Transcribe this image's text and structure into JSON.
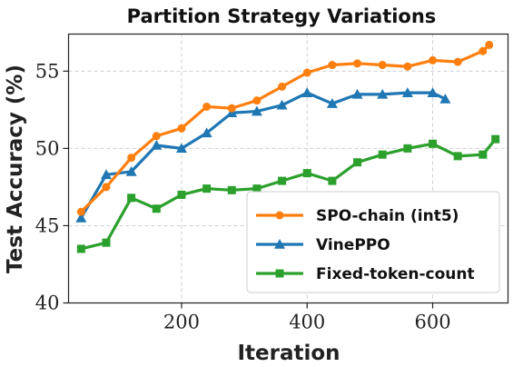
{
  "chart_data": {
    "type": "line",
    "title": "Partition Strategy Variations",
    "xlabel": "Iteration",
    "ylabel": "Test Accuracy (%)",
    "xlim": [
      20,
      720
    ],
    "ylim": [
      40,
      57.4
    ],
    "xticks": [
      200,
      400,
      600
    ],
    "yticks": [
      40,
      45,
      50,
      55
    ],
    "grid": true,
    "legend_position": "lower-right",
    "series": [
      {
        "name": "SPO-chain (int5)",
        "color": "#ff7f0e",
        "marker": "circle",
        "x": [
          40,
          80,
          120,
          160,
          200,
          240,
          280,
          320,
          360,
          400,
          440,
          480,
          520,
          560,
          600,
          640,
          680,
          690
        ],
        "y": [
          45.9,
          47.5,
          49.4,
          50.8,
          51.3,
          52.7,
          52.6,
          53.1,
          54.0,
          54.9,
          55.4,
          55.5,
          55.4,
          55.3,
          55.7,
          55.6,
          56.3,
          56.7
        ]
      },
      {
        "name": "VinePPO",
        "color": "#1f77b4",
        "marker": "triangle",
        "x": [
          40,
          80,
          120,
          160,
          200,
          240,
          280,
          320,
          360,
          400,
          440,
          480,
          520,
          560,
          600,
          620
        ],
        "y": [
          45.5,
          48.3,
          48.5,
          50.2,
          50.0,
          51.0,
          52.3,
          52.4,
          52.8,
          53.6,
          52.9,
          53.5,
          53.5,
          53.6,
          53.6,
          53.2
        ]
      },
      {
        "name": "Fixed-token-count",
        "color": "#2ca02c",
        "marker": "square",
        "x": [
          40,
          80,
          120,
          160,
          200,
          240,
          280,
          320,
          360,
          400,
          440,
          480,
          520,
          560,
          600,
          640,
          680,
          700
        ],
        "y": [
          43.5,
          43.9,
          46.8,
          46.1,
          47.0,
          47.4,
          47.3,
          47.4,
          47.9,
          48.4,
          47.9,
          49.1,
          49.6,
          50.0,
          50.3,
          49.5,
          49.6,
          50.6
        ]
      }
    ]
  }
}
